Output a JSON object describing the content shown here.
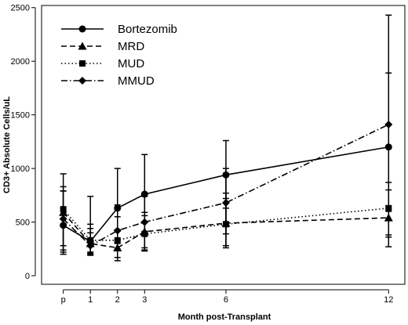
{
  "chart_data": {
    "type": "line",
    "xlabel": "Month post-Transplant",
    "ylabel": "CD3+ Absolute Cells/uL",
    "xlim": [
      -0.8,
      12.6
    ],
    "ylim": [
      -80,
      2520
    ],
    "x": [
      0,
      1,
      2,
      3,
      6,
      12
    ],
    "x_tick_labels": [
      "p",
      "1",
      "2",
      "3",
      "6",
      "12"
    ],
    "y_ticks": [
      0,
      500,
      1000,
      1500,
      2000,
      2500
    ],
    "legend_position": "top-left",
    "grid": false,
    "series": [
      {
        "name": "Bortezomib",
        "line_style": "solid",
        "marker": "circle",
        "values": [
          470,
          320,
          630,
          760,
          940,
          1200
        ],
        "error_low": [
          280,
          190,
          300,
          400,
          630,
          360
        ],
        "error_high": [
          790,
          740,
          1000,
          1130,
          1260,
          2430
        ]
      },
      {
        "name": "MRD",
        "line_style": "dashed",
        "marker": "triangle",
        "values": [
          590,
          300,
          260,
          410,
          490,
          540
        ],
        "error_low": [
          200,
          210,
          140,
          230,
          260,
          270
        ],
        "error_high": [
          830,
          400,
          430,
          560,
          770,
          800
        ]
      },
      {
        "name": "MUD",
        "line_style": "dotted",
        "marker": "square",
        "values": [
          620,
          330,
          330,
          390,
          480,
          630
        ],
        "error_low": [
          240,
          220,
          170,
          240,
          280,
          380
        ],
        "error_high": [
          950,
          480,
          550,
          590,
          720,
          870
        ]
      },
      {
        "name": "MMUD",
        "line_style": "dashdot",
        "marker": "diamond",
        "values": [
          530,
          280,
          420,
          500,
          680,
          1410
        ],
        "error_low": [
          220,
          200,
          250,
          260,
          390,
          600
        ],
        "error_high": [
          790,
          440,
          660,
          740,
          1000,
          1890
        ]
      }
    ]
  }
}
